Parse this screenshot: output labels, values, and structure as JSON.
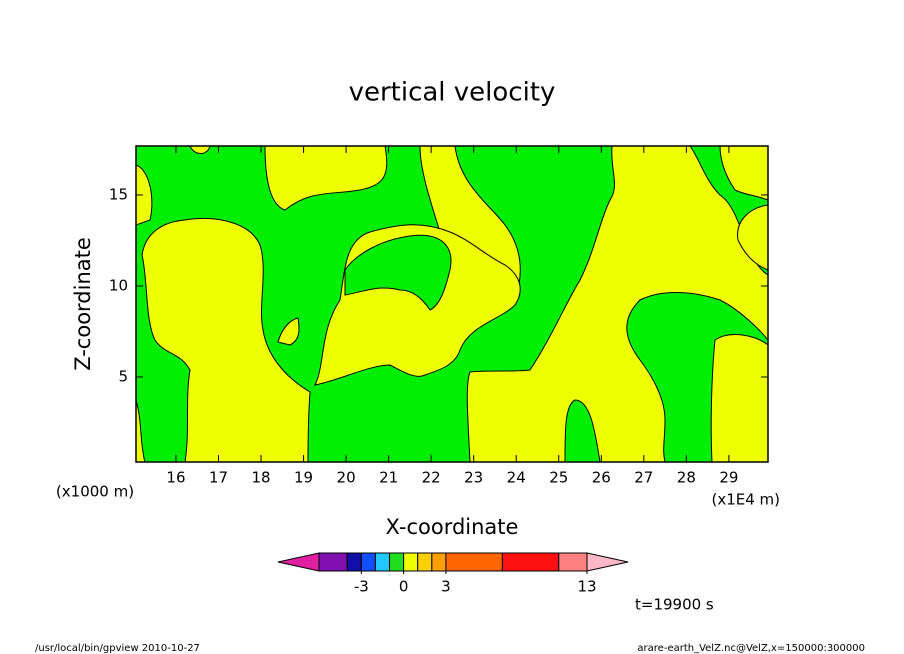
{
  "chart_data": {
    "type": "contour",
    "title": "vertical velocity",
    "x_label": "X-coordinate",
    "y_label": "Z-coordinate",
    "x_unit": "(x1E4 m)",
    "y_unit": "(x1000 m)",
    "xlim": [
      15.06,
      29.92
    ],
    "xticks": [
      16,
      17,
      18,
      19,
      20,
      21,
      22,
      23,
      24,
      25,
      26,
      27,
      28,
      29
    ],
    "ylim": [
      0.33,
      17.69
    ],
    "yticks": [
      5,
      10,
      15
    ],
    "colorbar": {
      "levels": [
        -6,
        -4,
        -3,
        -2,
        -1,
        0,
        1,
        2,
        3,
        7,
        11,
        13
      ],
      "colors": [
        "#8010b0",
        "#1010a8",
        "#1050ff",
        "#20c8ff",
        "#20dd20",
        "#eeff00",
        "#ffd000",
        "#ffa000",
        "#ff6600",
        "#ff1010",
        "#ff8080"
      ],
      "under_color": "#e020a0",
      "over_color": "#ffb8c8",
      "ticks": [
        -3,
        0,
        3,
        13
      ]
    },
    "time_label": "t=19900 s",
    "footer_left": "/usr/local/bin/gpview  2010-10-27",
    "footer_right": "arare-earth_VelZ.nc@VelZ,x=150000:300000"
  }
}
